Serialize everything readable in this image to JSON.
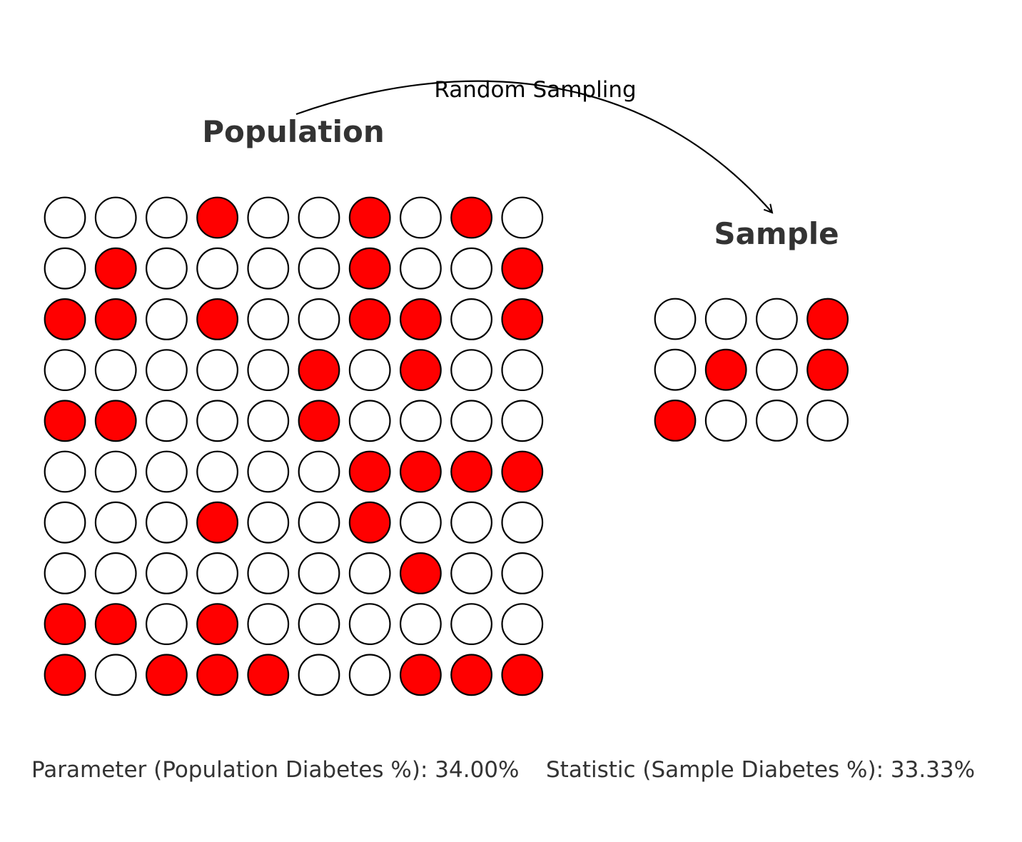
{
  "population": {
    "title": "Population",
    "grid": [
      [
        0,
        0,
        0,
        1,
        0,
        0,
        1,
        0,
        1,
        0
      ],
      [
        0,
        1,
        0,
        0,
        0,
        0,
        1,
        0,
        0,
        1
      ],
      [
        1,
        1,
        0,
        1,
        0,
        0,
        1,
        1,
        0,
        1
      ],
      [
        0,
        0,
        0,
        0,
        0,
        1,
        0,
        1,
        0,
        0
      ],
      [
        1,
        1,
        0,
        0,
        0,
        1,
        0,
        0,
        0,
        0
      ],
      [
        0,
        0,
        0,
        0,
        0,
        0,
        1,
        1,
        1,
        1
      ],
      [
        0,
        0,
        0,
        1,
        0,
        0,
        1,
        0,
        0,
        0
      ],
      [
        0,
        0,
        0,
        0,
        0,
        0,
        0,
        1,
        0,
        0
      ],
      [
        1,
        1,
        0,
        1,
        0,
        0,
        0,
        0,
        0,
        0
      ],
      [
        1,
        0,
        1,
        1,
        1,
        0,
        0,
        1,
        1,
        1
      ]
    ]
  },
  "sample": {
    "title": "Sample",
    "grid": [
      [
        0,
        0,
        0,
        1
      ],
      [
        0,
        1,
        0,
        1
      ],
      [
        1,
        0,
        0,
        0
      ]
    ]
  },
  "arrow": {
    "label": "Random Sampling"
  },
  "stats": {
    "parameter": "Parameter (Population Diabetes %): 34.00%",
    "statistic": "Statistic (Sample Diabetes %): 33.33%"
  },
  "colors": {
    "diabetes": "#ff0000",
    "healthy": "#ffffff",
    "outline": "#000000",
    "title": "#333333"
  }
}
